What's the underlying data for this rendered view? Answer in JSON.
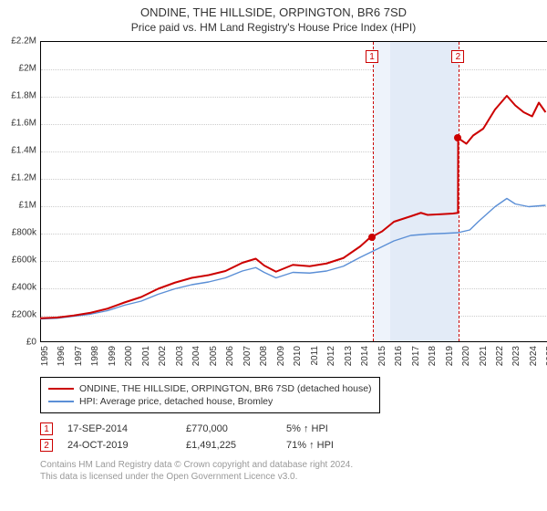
{
  "title": "ONDINE, THE HILLSIDE, ORPINGTON, BR6 7SD",
  "subtitle": "Price paid vs. HM Land Registry's House Price Index (HPI)",
  "chart": {
    "type": "line",
    "xlim": [
      1995,
      2025.3
    ],
    "x_ticks": [
      1995,
      1996,
      1997,
      1998,
      1999,
      2000,
      2001,
      2002,
      2003,
      2004,
      2005,
      2006,
      2007,
      2008,
      2009,
      2010,
      2011,
      2012,
      2013,
      2014,
      2015,
      2016,
      2017,
      2018,
      2019,
      2020,
      2021,
      2022,
      2023,
      2024,
      2025
    ],
    "ylim": [
      0,
      2200000
    ],
    "y_ticks": [
      0,
      200000,
      400000,
      600000,
      800000,
      1000000,
      1200000,
      1400000,
      1600000,
      1800000,
      2000000,
      2200000
    ],
    "y_tick_labels": [
      "£0",
      "£200k",
      "£400k",
      "£600k",
      "£800k",
      "£1M",
      "£1.2M",
      "£1.4M",
      "£1.6M",
      "£1.8M",
      "£2M",
      "£2.2M"
    ],
    "grid_color": "#cccccc",
    "background_color": "#ffffff",
    "band1": {
      "start": 2014.7,
      "end": 2015.7,
      "color": "#eef3fb"
    },
    "band2": {
      "start": 2015.7,
      "end": 2019.8,
      "color": "#e3ebf7"
    },
    "dash_color": "#cc0000",
    "series": {
      "property": {
        "label": "ONDINE, THE HILLSIDE, ORPINGTON, BR6 7SD (detached house)",
        "color": "#cc0000",
        "width": 2,
        "points": [
          [
            1995,
            175000
          ],
          [
            1996,
            180000
          ],
          [
            1997,
            195000
          ],
          [
            1998,
            215000
          ],
          [
            1999,
            245000
          ],
          [
            2000,
            290000
          ],
          [
            2001,
            330000
          ],
          [
            2002,
            390000
          ],
          [
            2003,
            435000
          ],
          [
            2004,
            470000
          ],
          [
            2005,
            490000
          ],
          [
            2006,
            520000
          ],
          [
            2007,
            580000
          ],
          [
            2007.8,
            610000
          ],
          [
            2008.3,
            560000
          ],
          [
            2009,
            515000
          ],
          [
            2010,
            565000
          ],
          [
            2011,
            555000
          ],
          [
            2012,
            575000
          ],
          [
            2013,
            615000
          ],
          [
            2014,
            700000
          ],
          [
            2014.5,
            755000
          ],
          [
            2014.7,
            770000
          ],
          [
            2015.3,
            810000
          ],
          [
            2016,
            880000
          ],
          [
            2017,
            920000
          ],
          [
            2017.6,
            945000
          ],
          [
            2018,
            930000
          ],
          [
            2018.8,
            935000
          ],
          [
            2019.5,
            940000
          ],
          [
            2019.8,
            945000
          ],
          [
            2019.81,
            1491225
          ],
          [
            2020.3,
            1450000
          ],
          [
            2020.7,
            1510000
          ],
          [
            2021.3,
            1560000
          ],
          [
            2022,
            1700000
          ],
          [
            2022.7,
            1800000
          ],
          [
            2023.2,
            1730000
          ],
          [
            2023.7,
            1680000
          ],
          [
            2024.2,
            1650000
          ],
          [
            2024.6,
            1750000
          ],
          [
            2025,
            1680000
          ]
        ]
      },
      "hpi": {
        "label": "HPI: Average price, detached house, Bromley",
        "color": "#5b8fd6",
        "width": 1.4,
        "points": [
          [
            1995,
            170000
          ],
          [
            1996,
            175000
          ],
          [
            1997,
            190000
          ],
          [
            1998,
            205000
          ],
          [
            1999,
            230000
          ],
          [
            2000,
            270000
          ],
          [
            2001,
            300000
          ],
          [
            2002,
            350000
          ],
          [
            2003,
            390000
          ],
          [
            2004,
            420000
          ],
          [
            2005,
            440000
          ],
          [
            2006,
            470000
          ],
          [
            2007,
            520000
          ],
          [
            2007.8,
            545000
          ],
          [
            2008.3,
            510000
          ],
          [
            2009,
            470000
          ],
          [
            2010,
            510000
          ],
          [
            2011,
            505000
          ],
          [
            2012,
            520000
          ],
          [
            2013,
            555000
          ],
          [
            2014,
            620000
          ],
          [
            2015,
            680000
          ],
          [
            2016,
            740000
          ],
          [
            2017,
            780000
          ],
          [
            2018,
            790000
          ],
          [
            2019,
            795000
          ],
          [
            2019.8,
            800000
          ],
          [
            2020.5,
            820000
          ],
          [
            2021,
            880000
          ],
          [
            2022,
            990000
          ],
          [
            2022.7,
            1050000
          ],
          [
            2023.2,
            1010000
          ],
          [
            2024,
            990000
          ],
          [
            2025,
            1000000
          ]
        ]
      }
    },
    "sale_markers": [
      {
        "n": "1",
        "x": 2014.7,
        "y": 770000
      },
      {
        "n": "2",
        "x": 2019.8,
        "y": 1491225
      }
    ]
  },
  "sales": [
    {
      "n": "1",
      "date": "17-SEP-2014",
      "price": "£770,000",
      "pct": "5% ↑ HPI"
    },
    {
      "n": "2",
      "date": "24-OCT-2019",
      "price": "£1,491,225",
      "pct": "71% ↑ HPI"
    }
  ],
  "credits": {
    "l1": "Contains HM Land Registry data © Crown copyright and database right 2024.",
    "l2": "This data is licensed under the Open Government Licence v3.0."
  }
}
